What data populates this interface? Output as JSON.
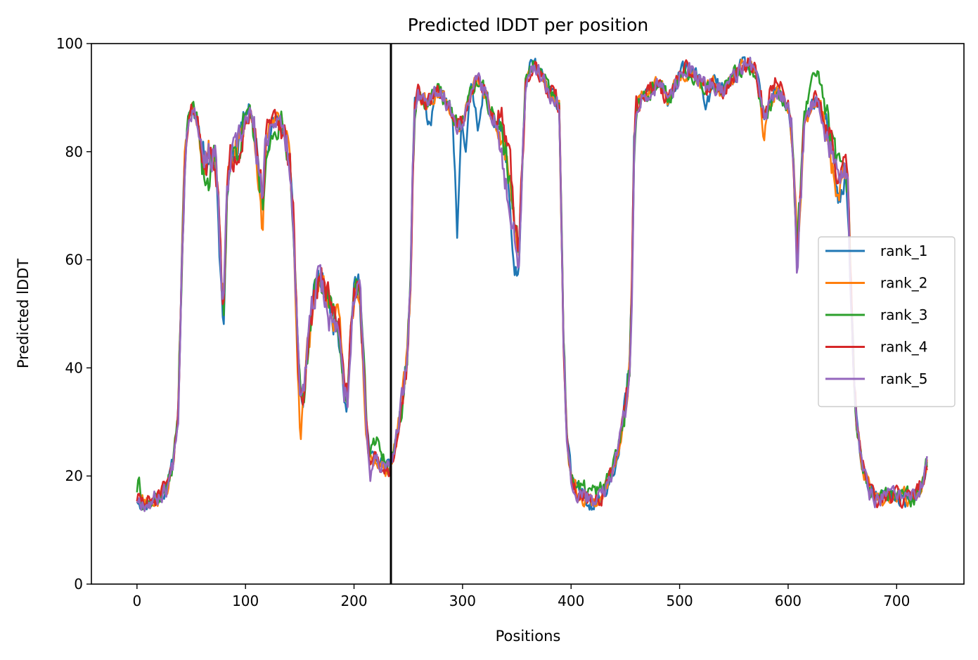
{
  "chart_data": {
    "type": "line",
    "title": "Predicted lDDT per position",
    "xlabel": "Positions",
    "ylabel": "Predicted lDDT",
    "xlim": [
      -42,
      762
    ],
    "ylim": [
      0,
      100
    ],
    "xticks": [
      "0",
      "100",
      "200",
      "300",
      "400",
      "500",
      "600",
      "700"
    ],
    "yticks": [
      "0",
      "20",
      "40",
      "60",
      "80",
      "100"
    ],
    "grid": false,
    "legend_position": "center-right",
    "vertical_line_x": 234,
    "vertical_line_color": "#000000",
    "base_profile": [
      [
        0,
        16
      ],
      [
        3,
        15.5
      ],
      [
        8,
        15
      ],
      [
        15,
        15.5
      ],
      [
        22,
        16.5
      ],
      [
        28,
        18
      ],
      [
        33,
        22
      ],
      [
        38,
        32
      ],
      [
        42,
        65
      ],
      [
        45,
        82
      ],
      [
        48,
        87
      ],
      [
        52,
        88
      ],
      [
        56,
        86
      ],
      [
        60,
        80
      ],
      [
        64,
        79
      ],
      [
        68,
        80
      ],
      [
        72,
        79
      ],
      [
        75,
        70
      ],
      [
        78,
        55
      ],
      [
        80,
        52
      ],
      [
        83,
        72
      ],
      [
        86,
        78
      ],
      [
        90,
        80
      ],
      [
        95,
        82
      ],
      [
        100,
        86
      ],
      [
        104,
        87
      ],
      [
        108,
        84
      ],
      [
        111,
        78
      ],
      [
        114,
        74
      ],
      [
        116,
        70
      ],
      [
        118,
        80
      ],
      [
        122,
        85
      ],
      [
        127,
        86
      ],
      [
        132,
        85
      ],
      [
        137,
        83
      ],
      [
        141,
        78
      ],
      [
        144,
        68
      ],
      [
        146,
        55
      ],
      [
        149,
        40
      ],
      [
        151,
        33
      ],
      [
        154,
        36
      ],
      [
        158,
        45
      ],
      [
        162,
        52
      ],
      [
        166,
        55
      ],
      [
        170,
        56
      ],
      [
        175,
        54
      ],
      [
        180,
        50
      ],
      [
        185,
        48
      ],
      [
        188,
        45
      ],
      [
        191,
        36
      ],
      [
        194,
        34
      ],
      [
        198,
        50
      ],
      [
        202,
        56
      ],
      [
        205,
        55
      ],
      [
        208,
        45
      ],
      [
        211,
        30
      ],
      [
        214,
        24
      ],
      [
        220,
        23
      ],
      [
        226,
        22
      ],
      [
        232,
        21
      ],
      [
        236,
        24
      ],
      [
        240,
        28
      ],
      [
        245,
        34
      ],
      [
        249,
        42
      ],
      [
        252,
        55
      ],
      [
        254,
        75
      ],
      [
        256,
        88
      ],
      [
        259,
        91
      ],
      [
        263,
        90
      ],
      [
        268,
        89
      ],
      [
        273,
        90
      ],
      [
        278,
        91
      ],
      [
        283,
        90
      ],
      [
        288,
        88
      ],
      [
        292,
        86
      ],
      [
        296,
        85
      ],
      [
        300,
        86
      ],
      [
        305,
        89
      ],
      [
        310,
        92
      ],
      [
        315,
        93
      ],
      [
        320,
        91
      ],
      [
        325,
        88
      ],
      [
        330,
        86
      ],
      [
        335,
        84
      ],
      [
        340,
        80
      ],
      [
        344,
        74
      ],
      [
        348,
        66
      ],
      [
        352,
        62
      ],
      [
        355,
        78
      ],
      [
        358,
        92
      ],
      [
        362,
        95
      ],
      [
        366,
        96
      ],
      [
        370,
        95
      ],
      [
        375,
        93
      ],
      [
        380,
        91
      ],
      [
        386,
        90
      ],
      [
        389,
        88
      ],
      [
        391,
        70
      ],
      [
        393,
        45
      ],
      [
        396,
        28
      ],
      [
        400,
        20
      ],
      [
        405,
        17
      ],
      [
        410,
        16.5
      ],
      [
        415,
        16
      ],
      [
        420,
        15
      ],
      [
        425,
        15.5
      ],
      [
        430,
        17
      ],
      [
        435,
        19
      ],
      [
        440,
        22
      ],
      [
        445,
        27
      ],
      [
        450,
        33
      ],
      [
        454,
        40
      ],
      [
        456,
        55
      ],
      [
        458,
        80
      ],
      [
        460,
        88
      ],
      [
        465,
        90
      ],
      [
        470,
        91
      ],
      [
        475,
        92
      ],
      [
        480,
        92
      ],
      [
        485,
        91
      ],
      [
        490,
        90
      ],
      [
        495,
        92
      ],
      [
        500,
        94
      ],
      [
        505,
        95
      ],
      [
        510,
        95
      ],
      [
        515,
        94
      ],
      [
        520,
        93
      ],
      [
        525,
        92
      ],
      [
        530,
        93
      ],
      [
        535,
        92
      ],
      [
        540,
        91
      ],
      [
        545,
        92
      ],
      [
        550,
        94
      ],
      [
        555,
        95
      ],
      [
        560,
        96
      ],
      [
        565,
        96
      ],
      [
        570,
        95
      ],
      [
        574,
        90
      ],
      [
        578,
        86
      ],
      [
        582,
        88
      ],
      [
        586,
        90
      ],
      [
        590,
        91
      ],
      [
        595,
        90
      ],
      [
        600,
        88
      ],
      [
        603,
        84
      ],
      [
        606,
        72
      ],
      [
        608,
        62
      ],
      [
        611,
        70
      ],
      [
        615,
        85
      ],
      [
        620,
        88
      ],
      [
        625,
        90
      ],
      [
        630,
        88
      ],
      [
        635,
        84
      ],
      [
        640,
        80
      ],
      [
        645,
        76
      ],
      [
        650,
        74
      ],
      [
        653,
        76
      ],
      [
        655,
        72
      ],
      [
        657,
        60
      ],
      [
        660,
        42
      ],
      [
        663,
        30
      ],
      [
        667,
        24
      ],
      [
        671,
        20
      ],
      [
        675,
        17
      ],
      [
        680,
        16
      ],
      [
        690,
        16
      ],
      [
        700,
        16
      ],
      [
        710,
        16
      ],
      [
        716,
        16
      ],
      [
        720,
        17
      ],
      [
        724,
        19
      ],
      [
        728,
        22
      ]
    ],
    "series": [
      {
        "name": "rank_1",
        "color": "#1f77b4",
        "seed": 11,
        "offsets": [
          [
            266,
            274,
            -6
          ],
          [
            292,
            298,
            -22
          ],
          [
            300,
            306,
            -6
          ],
          [
            310,
            318,
            -8
          ],
          [
            340,
            355,
            -8
          ],
          [
            520,
            530,
            -4
          ],
          [
            640,
            655,
            -4
          ],
          [
            75,
            82,
            -3
          ],
          [
            100,
            106,
            2
          ]
        ]
      },
      {
        "name": "rank_2",
        "color": "#ff7f0e",
        "seed": 23,
        "offsets": [
          [
            112,
            118,
            -8
          ],
          [
            146,
            154,
            -5
          ],
          [
            575,
            580,
            -6
          ],
          [
            640,
            650,
            -4
          ],
          [
            40,
            48,
            1
          ]
        ]
      },
      {
        "name": "rank_3",
        "color": "#2ca02c",
        "seed": 37,
        "offsets": [
          [
            60,
            72,
            -5
          ],
          [
            110,
            130,
            -5
          ],
          [
            0,
            4,
            5
          ],
          [
            215,
            230,
            4
          ],
          [
            400,
            440,
            2
          ],
          [
            610,
            650,
            5
          ],
          [
            725,
            728,
            3
          ]
        ]
      },
      {
        "name": "rank_4",
        "color": "#d62728",
        "seed": 51,
        "offsets": [
          [
            330,
            350,
            4
          ],
          [
            575,
            600,
            3
          ],
          [
            640,
            655,
            2
          ]
        ]
      },
      {
        "name": "rank_5",
        "color": "#9467bd",
        "seed": 67,
        "offsets": [
          [
            330,
            352,
            -6
          ],
          [
            170,
            185,
            -3
          ],
          [
            605,
            612,
            -3
          ],
          [
            212,
            218,
            -4
          ]
        ]
      }
    ]
  }
}
